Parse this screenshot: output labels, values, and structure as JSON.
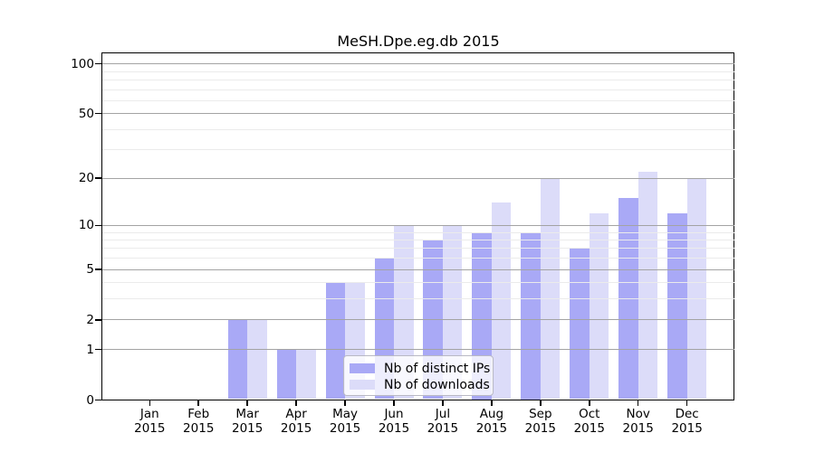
{
  "chart_data": {
    "type": "bar",
    "title": "MeSH.Dpe.eg.db 2015",
    "categories": [
      "Jan",
      "Feb",
      "Mar",
      "Apr",
      "May",
      "Jun",
      "Jul",
      "Aug",
      "Sep",
      "Oct",
      "Nov",
      "Dec"
    ],
    "category_year": "2015",
    "series": [
      {
        "name": "Nb of distinct IPs",
        "color": "#a9a9f6",
        "values": [
          0,
          0,
          2,
          1,
          4,
          6,
          8,
          9,
          9,
          7,
          15,
          12
        ]
      },
      {
        "name": "Nb of downloads",
        "color": "#dcdcf9",
        "values": [
          0,
          0,
          2,
          1,
          4,
          10,
          10,
          14,
          20,
          12,
          22,
          20
        ]
      }
    ],
    "yscale": "log1p",
    "ylim": [
      0,
      100
    ],
    "yticks": [
      0,
      1,
      2,
      5,
      10,
      20,
      50,
      100
    ],
    "minor_gridlines": [
      3,
      4,
      6,
      7,
      8,
      9,
      30,
      40,
      60,
      70,
      80,
      90
    ],
    "grid": "on",
    "legend_position": "bottom-center",
    "colors": {
      "major_grid": "#a3a3a3",
      "minor_grid": "#ebebeb",
      "axis": "#000000"
    }
  }
}
